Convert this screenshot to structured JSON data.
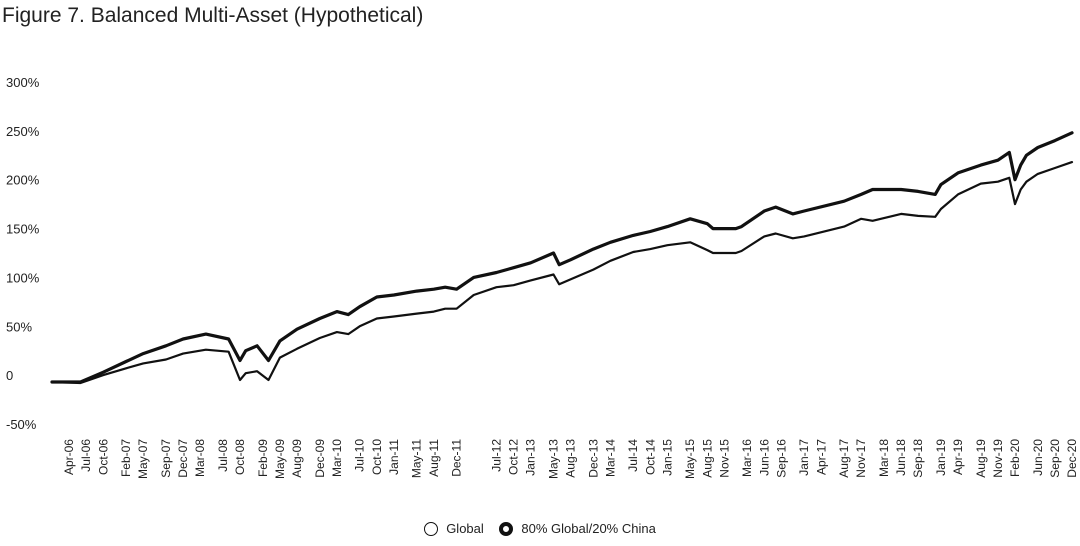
{
  "title": "Figure 7. Balanced Multi-Asset (Hypothetical)",
  "chart_data": {
    "type": "line",
    "title": "Figure 7. Balanced Multi-Asset (Hypothetical)",
    "xlabel": "",
    "ylabel": "",
    "ylim": [
      -50,
      300
    ],
    "y_ticks": [
      "-50%",
      "0",
      "50%",
      "100%",
      "150%",
      "200%",
      "250%",
      "300%"
    ],
    "y_tick_values": [
      -50,
      0,
      50,
      100,
      150,
      200,
      250,
      300
    ],
    "x_ticks": [
      "Apr-06",
      "Jul-06",
      "Oct-06",
      "Feb-07",
      "May-07",
      "Sep-07",
      "Dec-07",
      "Mar-08",
      "Jul-08",
      "Oct-08",
      "Feb-09",
      "May-09",
      "Aug-09",
      "Dec-09",
      "Mar-10",
      "Jul-10",
      "Oct-10",
      "Jan-11",
      "May-11",
      "Aug-11",
      "Dec-11",
      "Jul-12",
      "Oct-12",
      "Jan-13",
      "May-13",
      "Aug-13",
      "Dec-13",
      "Mar-14",
      "Jul-14",
      "Oct-14",
      "Jan-15",
      "May-15",
      "Aug-15",
      "Nov-15",
      "Mar-16",
      "Jun-16",
      "Sep-16",
      "Jan-17",
      "Apr-17",
      "Aug-17",
      "Nov-17",
      "Mar-18",
      "Jun-18",
      "Sep-18",
      "Jan-19",
      "Apr-19",
      "Aug-19",
      "Nov-19",
      "Feb-20",
      "Jun-20",
      "Sep-20",
      "Dec-20"
    ],
    "grid": false,
    "legend_position": "bottom-center",
    "series": [
      {
        "name": "Global",
        "style": "thin",
        "x": [
          "Jan-06",
          "Jun-06",
          "Oct-06",
          "Feb-07",
          "May-07",
          "Sep-07",
          "Dec-07",
          "Apr-08",
          "Aug-08",
          "Oct-08",
          "Nov-08",
          "Jan-09",
          "Mar-09",
          "May-09",
          "Aug-09",
          "Dec-09",
          "Mar-10",
          "May-10",
          "Jul-10",
          "Oct-10",
          "Jan-11",
          "May-11",
          "Aug-11",
          "Oct-11",
          "Dec-11",
          "Mar-12",
          "Jul-12",
          "Oct-12",
          "Jan-13",
          "May-13",
          "Jun-13",
          "Aug-13",
          "Dec-13",
          "Mar-14",
          "Jul-14",
          "Oct-14",
          "Jan-15",
          "May-15",
          "Aug-15",
          "Sep-15",
          "Jan-16",
          "Feb-16",
          "Jun-16",
          "Aug-16",
          "Nov-16",
          "Jan-17",
          "Aug-17",
          "Nov-17",
          "Jan-18",
          "Jun-18",
          "Sep-18",
          "Dec-18",
          "Jan-19",
          "Apr-19",
          "Aug-19",
          "Nov-19",
          "Jan-20",
          "Feb-20",
          "Mar-20",
          "Apr-20",
          "Jun-20",
          "Sep-20",
          "Dec-20"
        ],
        "values": [
          -7,
          -8,
          0,
          7,
          12,
          16,
          22,
          26,
          24,
          -5,
          2,
          4,
          -5,
          18,
          27,
          38,
          44,
          42,
          50,
          58,
          60,
          63,
          65,
          68,
          68,
          82,
          90,
          92,
          97,
          103,
          93,
          98,
          108,
          117,
          126,
          129,
          133,
          136,
          128,
          125,
          125,
          127,
          142,
          145,
          140,
          142,
          152,
          160,
          158,
          165,
          163,
          162,
          170,
          185,
          196,
          198,
          202,
          175,
          190,
          198,
          206,
          212,
          218
        ]
      },
      {
        "name": "80% Global/20% China",
        "style": "thick",
        "x": [
          "Jan-06",
          "Jun-06",
          "Oct-06",
          "Feb-07",
          "May-07",
          "Sep-07",
          "Dec-07",
          "Apr-08",
          "Aug-08",
          "Oct-08",
          "Nov-08",
          "Jan-09",
          "Mar-09",
          "May-09",
          "Aug-09",
          "Dec-09",
          "Mar-10",
          "May-10",
          "Jul-10",
          "Oct-10",
          "Jan-11",
          "May-11",
          "Aug-11",
          "Oct-11",
          "Dec-11",
          "Mar-12",
          "Jul-12",
          "Oct-12",
          "Jan-13",
          "May-13",
          "Jun-13",
          "Aug-13",
          "Dec-13",
          "Mar-14",
          "Jul-14",
          "Oct-14",
          "Jan-15",
          "May-15",
          "Aug-15",
          "Sep-15",
          "Jan-16",
          "Feb-16",
          "Jun-16",
          "Aug-16",
          "Nov-16",
          "Jan-17",
          "Aug-17",
          "Nov-17",
          "Jan-18",
          "Jun-18",
          "Sep-18",
          "Dec-18",
          "Jan-19",
          "Apr-19",
          "Aug-19",
          "Nov-19",
          "Jan-20",
          "Feb-20",
          "Mar-20",
          "Apr-20",
          "Jun-20",
          "Sep-20",
          "Dec-20"
        ],
        "values": [
          -7,
          -7,
          3,
          14,
          22,
          30,
          37,
          42,
          37,
          15,
          25,
          30,
          15,
          35,
          47,
          58,
          65,
          62,
          70,
          80,
          82,
          86,
          88,
          90,
          88,
          100,
          105,
          110,
          115,
          125,
          113,
          118,
          129,
          136,
          143,
          147,
          152,
          160,
          155,
          150,
          150,
          152,
          168,
          172,
          165,
          168,
          178,
          185,
          190,
          190,
          188,
          185,
          195,
          207,
          215,
          220,
          228,
          200,
          215,
          225,
          233,
          240,
          248
        ]
      }
    ]
  }
}
